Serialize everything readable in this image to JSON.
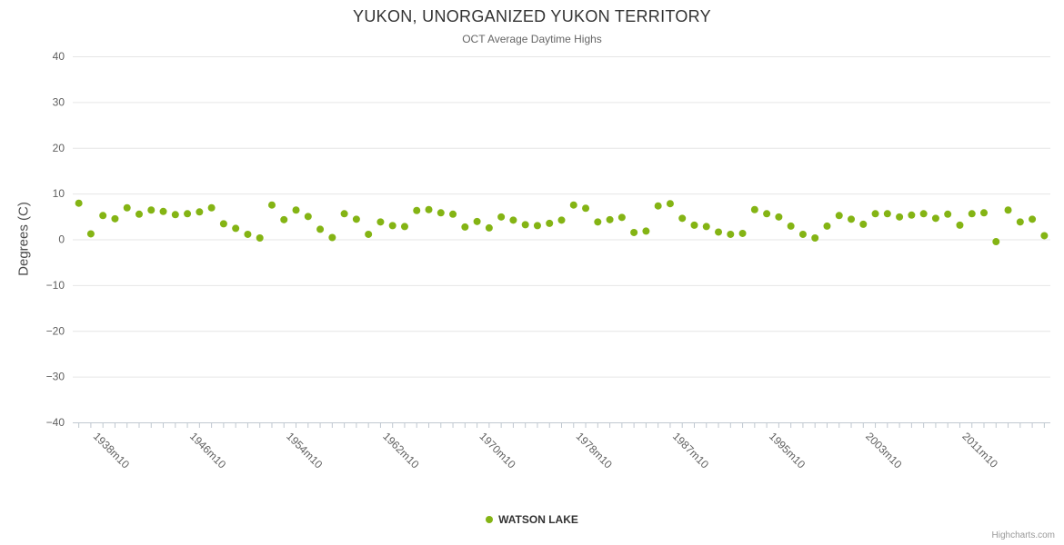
{
  "credits": "Highcharts.com",
  "colors": {
    "series": "#84b414",
    "grid": "#e6e6e6",
    "axis_line": "#c0c8d0",
    "tick": "#c0c8d0",
    "label_text": "#606060"
  },
  "chart_data": {
    "type": "scatter",
    "title": "YUKON, UNORGANIZED YUKON TERRITORY",
    "subtitle": "OCT Average Daytime Highs",
    "xlabel": "",
    "ylabel": "Degrees (C)",
    "ylim": [
      -40,
      40
    ],
    "y_tick_interval": 10,
    "grid": true,
    "legend_position": "bottom-center",
    "x_tick_label_start": 1,
    "x_tick_label_every": 8,
    "x_label_rotation": 45,
    "marker_radius": 4,
    "series": [
      {
        "name": "WATSON LAKE",
        "color": "#84b414",
        "marker": "circle"
      }
    ],
    "categories": [
      "1937m10",
      "1938m10",
      "1939m10",
      "1940m10",
      "1941m10",
      "1942m10",
      "1943m10",
      "1944m10",
      "1945m10",
      "1946m10",
      "1947m10",
      "1948m10",
      "1949m10",
      "1950m10",
      "1951m10",
      "1952m10",
      "1953m10",
      "1954m10",
      "1955m10",
      "1956m10",
      "1957m10",
      "1958m10",
      "1959m10",
      "1960m10",
      "1961m10",
      "1962m10",
      "1963m10",
      "1964m10",
      "1965m10",
      "1966m10",
      "1967m10",
      "1968m10",
      "1969m10",
      "1970m10",
      "1971m10",
      "1972m10",
      "1973m10",
      "1974m10",
      "1975m10",
      "1976m10",
      "1977m10",
      "1978m10",
      "1979m10",
      "1980m10",
      "1981m10",
      "1982m10",
      "1983m10",
      "1984m10",
      "1986m10",
      "1987m10",
      "1988m10",
      "1989m10",
      "1990m10",
      "1991m10",
      "1992m10",
      "1993m10",
      "1994m10",
      "1995m10",
      "1996m10",
      "1997m10",
      "1998m10",
      "1999m10",
      "2000m10",
      "2001m10",
      "2002m10",
      "2003m10",
      "2004m10",
      "2005m10",
      "2006m10",
      "2007m10",
      "2008m10",
      "2009m10",
      "2010m10",
      "2011m10",
      "2012m10",
      "2013m10",
      "2014m10",
      "2015m10",
      "2016m10",
      "2017m10",
      "2018m10"
    ],
    "values": [
      7.9,
      1.2,
      5.2,
      4.5,
      6.9,
      5.5,
      6.4,
      6.1,
      5.4,
      5.6,
      6.0,
      6.9,
      3.4,
      2.4,
      1.1,
      0.3,
      7.5,
      4.3,
      6.4,
      5.0,
      2.2,
      0.4,
      5.6,
      4.4,
      1.1,
      3.8,
      3.0,
      2.8,
      6.3,
      6.5,
      5.8,
      5.5,
      2.7,
      3.9,
      2.5,
      4.9,
      4.2,
      3.2,
      3.0,
      3.5,
      4.2,
      7.5,
      6.8,
      3.8,
      4.3,
      4.8,
      1.5,
      1.8,
      7.3,
      7.8,
      4.6,
      3.1,
      2.8,
      1.6,
      1.1,
      1.3,
      6.5,
      5.6,
      4.9,
      2.9,
      1.1,
      0.3,
      2.9,
      5.2,
      4.4,
      3.3,
      5.6,
      5.6,
      4.9,
      5.3,
      5.6,
      4.6,
      5.5,
      3.1,
      5.6,
      5.8,
      -0.5,
      6.4,
      3.8,
      4.4,
      0.8
    ]
  }
}
